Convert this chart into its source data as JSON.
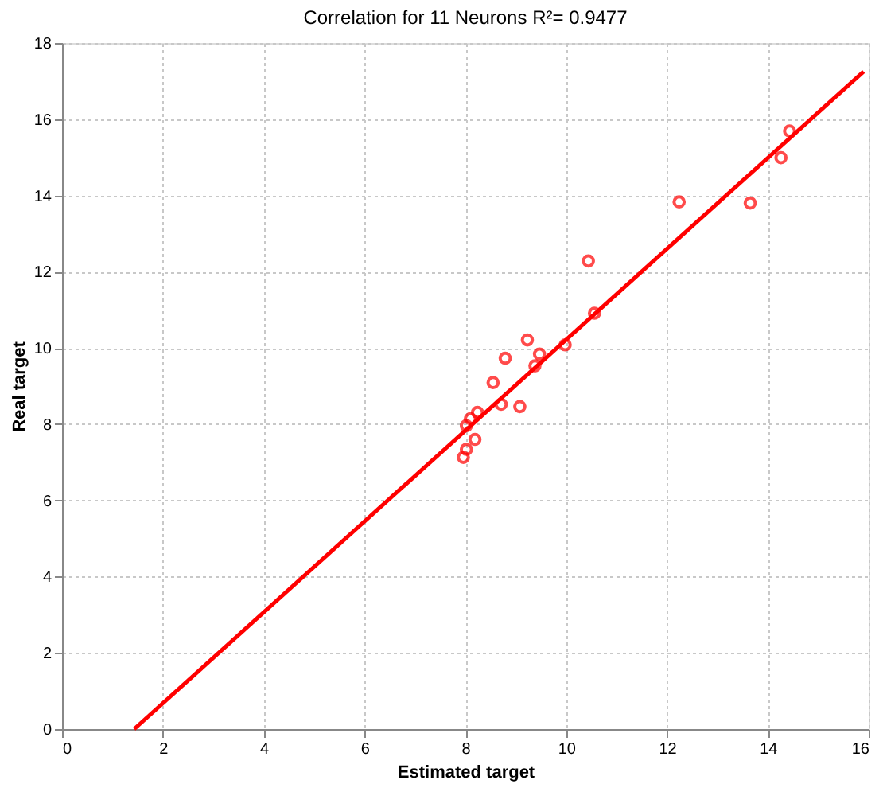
{
  "chart_data": {
    "type": "scatter",
    "title": "Correlation for 11 Neurons        R²= 0.9477",
    "xlabel": "Estimated target",
    "ylabel": "Real target",
    "x": [
      7.96,
      8.02,
      8.19,
      8.02,
      8.1,
      8.24,
      8.71,
      9.08,
      8.55,
      8.79,
      9.23,
      9.38,
      9.47,
      9.98,
      10.56,
      10.44,
      12.24,
      13.65,
      14.26,
      14.43
    ],
    "series": [
      {
        "color": "#ff0000",
        "marker": "circle",
        "values": [
          7.13,
          7.34,
          7.6,
          7.96,
          8.14,
          8.31,
          8.52,
          8.46,
          9.09,
          9.73,
          10.21,
          9.53,
          9.84,
          10.08,
          10.91,
          12.28,
          13.83,
          13.8,
          14.99,
          15.69
        ]
      },
      {
        "type": "line",
        "color": "#ff0000",
        "marker": "none",
        "line_style": "solid",
        "x": [
          1.43,
          15.9
        ],
        "values": [
          0,
          17.25
        ]
      }
    ],
    "xlim": [
      0,
      16
    ],
    "ylim": [
      0,
      18
    ],
    "xticks": [
      0,
      2,
      4,
      6,
      8,
      10,
      12,
      14,
      16
    ],
    "yticks": [
      0,
      2,
      4,
      6,
      8,
      10,
      12,
      14,
      16,
      18
    ],
    "grid": true
  }
}
